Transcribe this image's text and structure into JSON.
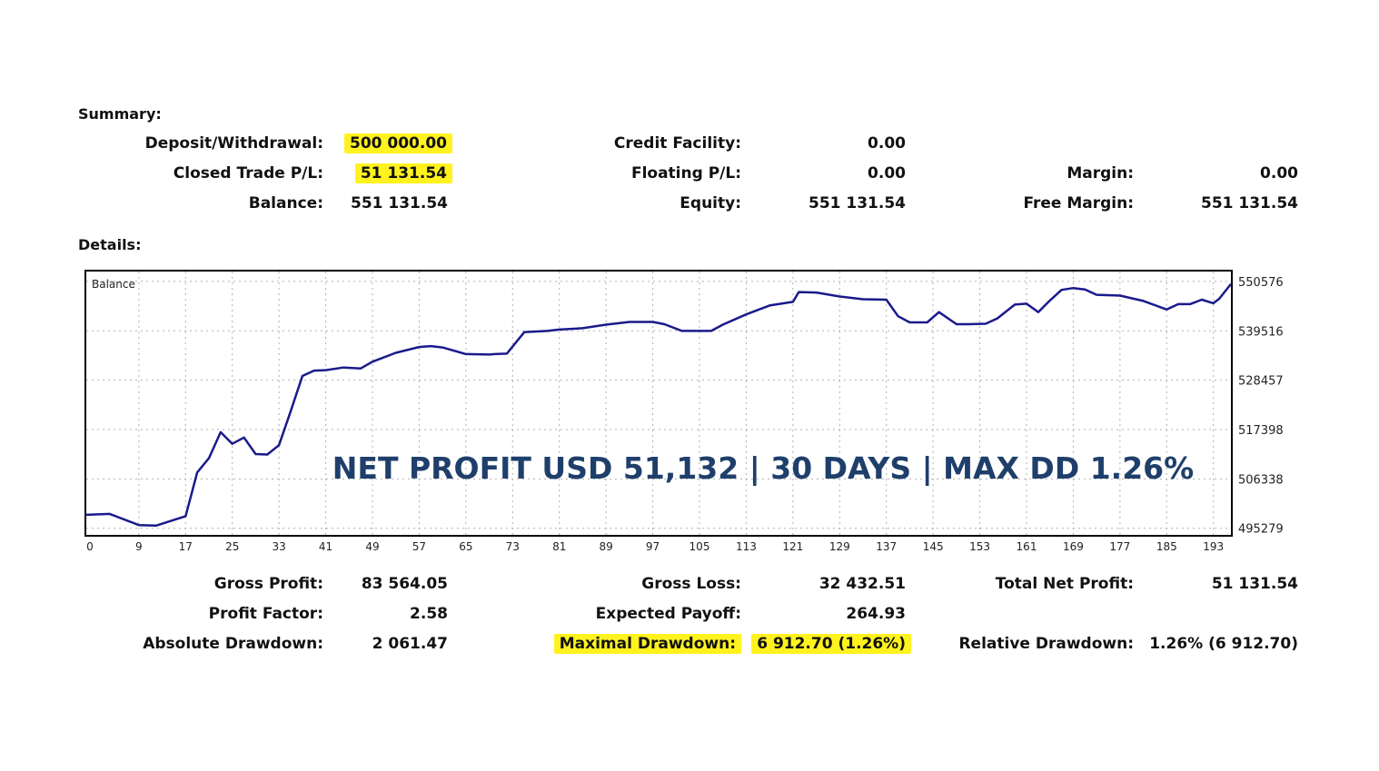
{
  "summary": {
    "heading": "Summary:",
    "deposit_label": "Deposit/Withdrawal:",
    "deposit_value": "500 000.00",
    "closed_label": "Closed Trade P/L:",
    "closed_value": "51 131.54",
    "balance_label": "Balance:",
    "balance_value": "551 131.54",
    "credit_label": "Credit Facility:",
    "credit_value": "0.00",
    "floating_label": "Floating P/L:",
    "floating_value": "0.00",
    "equity_label": "Equity:",
    "equity_value": "551 131.54",
    "margin_label": "Margin:",
    "margin_value": "0.00",
    "free_margin_label": "Free Margin:",
    "free_margin_value": "551 131.54"
  },
  "details": {
    "heading": "Details:",
    "gross_profit_label": "Gross Profit:",
    "gross_profit_value": "83 564.05",
    "profit_factor_label": "Profit Factor:",
    "profit_factor_value": "2.58",
    "abs_dd_label": "Absolute Drawdown:",
    "abs_dd_value": "2 061.47",
    "gross_loss_label": "Gross Loss:",
    "gross_loss_value": "32 432.51",
    "expected_payoff_label": "Expected Payoff:",
    "expected_payoff_value": "264.93",
    "max_dd_label": "Maximal Drawdown:",
    "max_dd_value": "6 912.70 (1.26%)",
    "total_net_label": "Total Net Profit:",
    "total_net_value": "51 131.54",
    "rel_dd_label": "Relative Drawdown:",
    "rel_dd_value": "1.26% (6 912.70)"
  },
  "colors": {
    "line": "#1a1a8c",
    "overlay": "#1f3f6b",
    "highlight": "#fff21f",
    "grid": "#b0b0b0"
  },
  "chart_data": {
    "type": "line",
    "title": "Balance",
    "annotation": "NET PROFIT USD 51,132 | 30 DAYS | MAX DD 1.26%",
    "xlim": [
      0,
      196
    ],
    "ylim": [
      493800,
      552800
    ],
    "xticks": [
      0,
      9,
      17,
      25,
      33,
      41,
      49,
      57,
      65,
      73,
      81,
      89,
      97,
      105,
      113,
      121,
      129,
      137,
      145,
      153,
      161,
      169,
      177,
      185,
      193
    ],
    "yticks": [
      550576,
      539516,
      528457,
      517398,
      506338,
      495279
    ],
    "series": [
      {
        "name": "Balance",
        "x": [
          0,
          4,
          9,
          12,
          17,
          19,
          21,
          23,
          25,
          27,
          29,
          31,
          33,
          35,
          37,
          39,
          41,
          44,
          47,
          49,
          53,
          57,
          59,
          61,
          65,
          69,
          70,
          72,
          75,
          79,
          81,
          85,
          89,
          93,
          97,
          99,
          102,
          105,
          107,
          109,
          113,
          117,
          121,
          122,
          125,
          129,
          133,
          137,
          139,
          141,
          144,
          146,
          149,
          151,
          154,
          156,
          159,
          161,
          163,
          165,
          167,
          169,
          171,
          173,
          177,
          181,
          185,
          187,
          189,
          191,
          193,
          194,
          196
        ],
        "y": [
          498300,
          498500,
          496000,
          495900,
          498000,
          507800,
          511000,
          516800,
          514200,
          515600,
          511900,
          511800,
          513900,
          521500,
          529400,
          530600,
          530700,
          531300,
          531100,
          532600,
          534600,
          535900,
          536100,
          535800,
          534300,
          534200,
          534300,
          534400,
          539200,
          539500,
          539800,
          540100,
          540900,
          541500,
          541500,
          541000,
          539500,
          539500,
          539500,
          540900,
          543200,
          545200,
          546000,
          548200,
          548100,
          547200,
          546600,
          546500,
          542800,
          541400,
          541400,
          543700,
          541000,
          541000,
          541100,
          542300,
          545400,
          545600,
          543700,
          546300,
          548700,
          549100,
          548800,
          547600,
          547400,
          546200,
          544300,
          545500,
          545500,
          546500,
          545700,
          546700,
          550000
        ]
      }
    ]
  }
}
